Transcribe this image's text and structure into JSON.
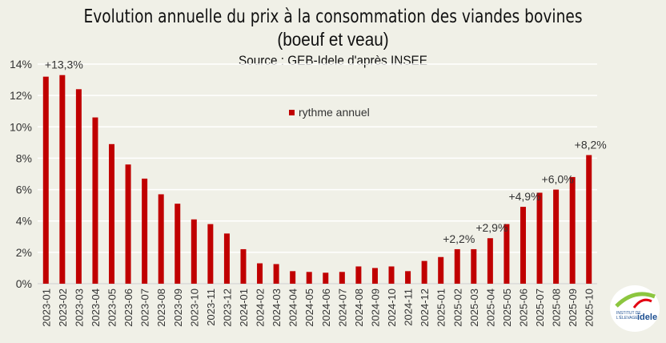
{
  "chart_data": {
    "type": "bar",
    "title": "Evolution annuelle du prix à la consommation des viandes bovines",
    "title_line2": "(boeuf et veau)",
    "subtitle": "Source : GEB-Idele d'après INSEE",
    "categories": [
      "2023-01",
      "2023-02",
      "2023-03",
      "2023-04",
      "2023-05",
      "2023-06",
      "2023-07",
      "2023-08",
      "2023-09",
      "2023-10",
      "2023-11",
      "2023-12",
      "2024-01",
      "2024-02",
      "2024-03",
      "2024-04",
      "2024-05",
      "2024-06",
      "2024-07",
      "2024-08",
      "2024-09",
      "2024-10",
      "2024-11",
      "2024-12",
      "2025-01",
      "2025-02",
      "2025-03",
      "2025-04",
      "2025-05",
      "2025-06",
      "2025-07",
      "2025-08",
      "2025-09",
      "2025-10"
    ],
    "series": [
      {
        "name": "rythme annuel",
        "color": "#c00000",
        "values": [
          13.2,
          13.3,
          12.4,
          10.6,
          8.9,
          7.6,
          6.7,
          5.7,
          5.1,
          4.1,
          3.8,
          3.2,
          2.2,
          1.3,
          1.25,
          0.8,
          0.75,
          0.7,
          0.75,
          1.1,
          1.0,
          1.1,
          0.8,
          1.45,
          1.7,
          2.2,
          2.2,
          2.9,
          3.8,
          4.9,
          5.8,
          6.0,
          6.8,
          8.2
        ]
      }
    ],
    "annotations": [
      {
        "category": "2023-02",
        "text": "+13,3%"
      },
      {
        "category": "2025-02",
        "text": "+2,2%"
      },
      {
        "category": "2025-04",
        "text": "+2,9%"
      },
      {
        "category": "2025-06",
        "text": "+4,9%"
      },
      {
        "category": "2025-08",
        "text": "+6,0%"
      },
      {
        "category": "2025-10",
        "text": "+8,2%"
      }
    ],
    "ylim": [
      0,
      14
    ],
    "yticks": [
      "0%",
      "2%",
      "4%",
      "6%",
      "8%",
      "10%",
      "12%",
      "14%"
    ],
    "grid": true,
    "legend": "top-center"
  },
  "logo": {
    "text": "INSTITUT DE L'ÉLEVAGE idele"
  }
}
